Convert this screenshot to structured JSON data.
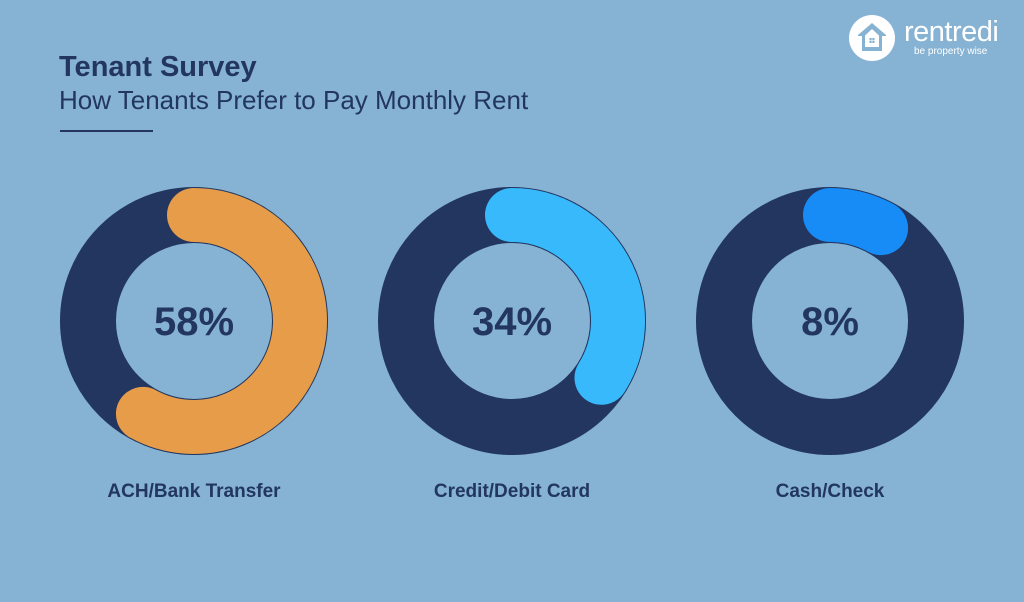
{
  "header": {
    "title": "Tenant Survey",
    "subtitle": "How Tenants Prefer to Pay Monthly Rent"
  },
  "brand": {
    "name": "rentredi",
    "tagline": "be property wise",
    "logo_icon": "house-logo-icon"
  },
  "colors": {
    "background": "#86b3d3",
    "ring_track": "#22365f",
    "text": "#22365f"
  },
  "chart_data": {
    "type": "pie",
    "variant": "donut-gauges",
    "title": "Tenant Survey",
    "subtitle": "How Tenants Prefer to Pay Monthly Rent",
    "series": [
      {
        "label": "ACH/Bank Transfer",
        "value": 58,
        "display": "58%",
        "color": "#e69c49"
      },
      {
        "label": "Credit/Debit Card",
        "value": 34,
        "display": "34%",
        "color": "#38b9fc"
      },
      {
        "label": "Cash/Check",
        "value": 8,
        "display": "8%",
        "color": "#188cf6"
      }
    ]
  }
}
